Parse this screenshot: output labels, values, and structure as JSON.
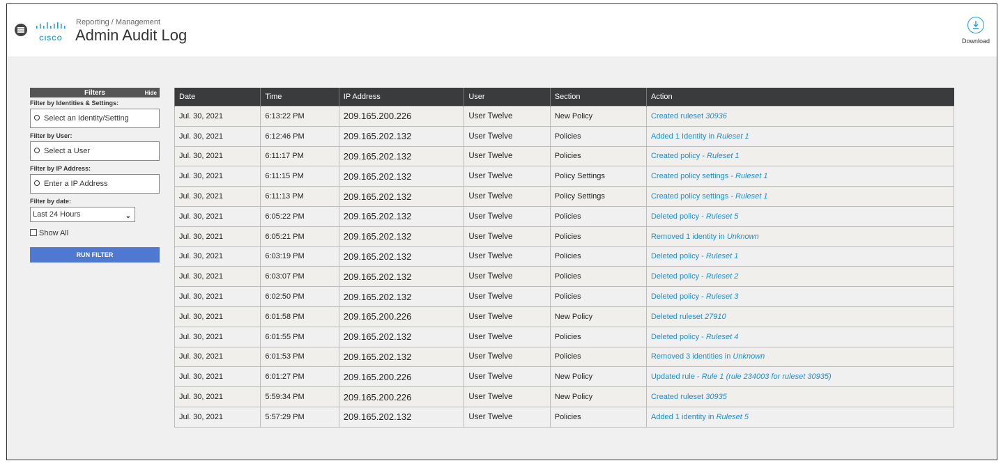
{
  "header": {
    "breadcrumb": "Reporting / Management",
    "title": "Admin Audit Log",
    "logo": "CISCO",
    "download": "Download"
  },
  "filters": {
    "title": "Filters",
    "hide": "Hide",
    "groups": [
      {
        "label": "Filter by Identities & Settings:",
        "placeholder": "Select an Identity/Setting"
      },
      {
        "label": "Filter by User:",
        "placeholder": "Select a User"
      },
      {
        "label": "Filter by IP Address:",
        "placeholder": "Enter a IP Address"
      }
    ],
    "date_label": "Filter by date:",
    "date_value": "Last 24 Hours",
    "show_all": "Show All",
    "run": "RUN FILTER"
  },
  "table": {
    "columns": [
      "Date",
      "Time",
      "IP Address",
      "User",
      "Section",
      "Action"
    ],
    "rows": [
      [
        "Jul. 30, 2021",
        "6:13:22 PM",
        "209.165.200.226",
        "User Twelve",
        "New Policy",
        {
          "text": "Created ruleset ",
          "em": "30936"
        }
      ],
      [
        "Jul. 30, 2021",
        "6:12:46 PM",
        "209.165.202.132",
        "User Twelve",
        "Policies",
        {
          "text": "Added 1 Identity in ",
          "em": "Ruleset 1"
        }
      ],
      [
        "Jul. 30, 2021",
        "6:11:17 PM",
        "209.165.202.132",
        "User Twelve",
        "Policies",
        {
          "text": "Created policy - ",
          "em": "Ruleset 1"
        }
      ],
      [
        "Jul. 30, 2021",
        "6:11:15 PM",
        "209.165.202.132",
        "User Twelve",
        "Policy Settings",
        {
          "text": "Created policy settings - ",
          "em": "Ruleset 1"
        }
      ],
      [
        "Jul. 30, 2021",
        "6:11:13 PM",
        "209.165.202.132",
        "User Twelve",
        "Policy Settings",
        {
          "text": "Created policy settings - ",
          "em": "Ruleset 1"
        }
      ],
      [
        "Jul. 30, 2021",
        "6:05:22 PM",
        "209.165.202.132",
        "User Twelve",
        "Policies",
        {
          "text": "Deleted policy - ",
          "em": "Ruleset 5"
        }
      ],
      [
        "Jul. 30, 2021",
        "6:05:21 PM",
        "209.165.202.132",
        "User Twelve",
        "Policies",
        {
          "text": "Removed 1 identity in ",
          "em": "Unknown"
        }
      ],
      [
        "Jul. 30, 2021",
        "6:03:19 PM",
        "209.165.202.132",
        "User Twelve",
        "Policies",
        {
          "text": "Deleted policy - ",
          "em": "Ruleset 1"
        }
      ],
      [
        "Jul. 30, 2021",
        "6:03:07 PM",
        "209.165.202.132",
        "User Twelve",
        "Policies",
        {
          "text": "Deleted policy - ",
          "em": "Ruleset 2"
        }
      ],
      [
        "Jul. 30, 2021",
        "6:02:50 PM",
        "209.165.202.132",
        "User Twelve",
        "Policies",
        {
          "text": "Deleted policy - ",
          "em": "Ruleset 3"
        }
      ],
      [
        "Jul. 30, 2021",
        "6:01:58 PM",
        "209.165.200.226",
        "User Twelve",
        "New Policy",
        {
          "text": "Deleted ruleset ",
          "em": "27910"
        }
      ],
      [
        "Jul. 30, 2021",
        "6:01:55 PM",
        "209.165.202.132",
        "User Twelve",
        "Policies",
        {
          "text": "Deleted policy - ",
          "em": "Ruleset 4"
        }
      ],
      [
        "Jul. 30, 2021",
        "6:01:53 PM",
        "209.165.202.132",
        "User Twelve",
        "Policies",
        {
          "text": "Removed 3 identities in ",
          "em": "Unknown"
        }
      ],
      [
        "Jul. 30, 2021",
        "6:01:27 PM",
        "209.165.200.226",
        "User Twelve",
        "New Policy",
        {
          "text": "Updated rule - ",
          "em": "Rule 1 (rule 234003 for ruleset 30935)"
        }
      ],
      [
        "Jul. 30, 2021",
        "5:59:34 PM",
        "209.165.200.226",
        "User Twelve",
        "New Policy",
        {
          "text": "Created ruleset ",
          "em": "30935"
        }
      ],
      [
        "Jul. 30, 2021",
        "5:57:29 PM",
        "209.165.202.132",
        "User Twelve",
        "Policies",
        {
          "text": "Added 1 identity in ",
          "em": "Ruleset 5"
        }
      ]
    ]
  }
}
